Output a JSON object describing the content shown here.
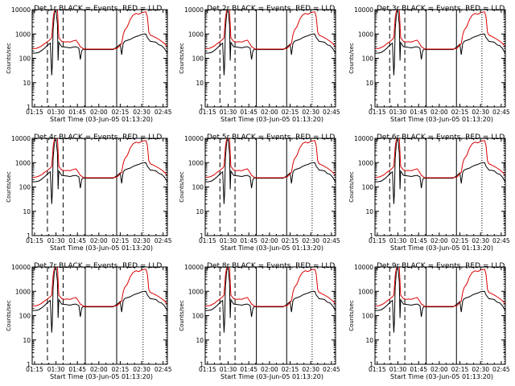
{
  "figure": {
    "xlabel": "Start Time (03-Jun-05 01:13:20)",
    "ylabel": "Counts/sec"
  },
  "chart_data": [
    {
      "type": "line",
      "title": "Det 1r BLACK = Events, RED = LLD",
      "panel": 0
    },
    {
      "type": "line",
      "title": "Det 2r BLACK = Events, RED = LLD",
      "panel": 1
    },
    {
      "type": "line",
      "title": "Det 3r BLACK = Events, RED = LLD",
      "panel": 2
    },
    {
      "type": "line",
      "title": "Det 4r BLACK = Events, RED = LLD",
      "panel": 3
    },
    {
      "type": "line",
      "title": "Det 5r BLACK = Events, RED = LLD",
      "panel": 4
    },
    {
      "type": "line",
      "title": "Det 6r BLACK = Events, RED = LLD",
      "panel": 5
    },
    {
      "type": "line",
      "title": "Det 7r BLACK = Events, RED = LLD",
      "panel": 6
    },
    {
      "type": "line",
      "title": "Det 8r BLACK = Events, RED = LLD",
      "panel": 7
    },
    {
      "type": "line",
      "title": "Det 9r BLACK = Events, RED = LLD",
      "panel": 8
    }
  ],
  "shared": {
    "xscale": "linear",
    "yscale": "log",
    "xlim_min": [
      73.33,
      168
    ],
    "ylim": [
      1,
      10000
    ],
    "xticks_min": [
      75,
      90,
      105,
      120,
      135,
      150,
      165
    ],
    "xtick_labels": [
      "01:15",
      "01:30",
      "01:45",
      "02:00",
      "02:15",
      "02:30",
      "02:45"
    ],
    "yticks": [
      1,
      10,
      100,
      1000,
      10000
    ],
    "ytick_labels": [
      "1",
      "10",
      "100",
      "1000",
      "10000"
    ],
    "grid": false,
    "colors": {
      "events": "#000000",
      "lld": "#dd0000",
      "axes": "#000000"
    },
    "series": [
      {
        "name": "Events",
        "x": [
          73.3,
          76,
          78,
          80,
          82,
          84,
          86,
          87,
          87.5,
          88,
          89,
          90,
          91,
          91.5,
          92,
          94,
          96,
          98,
          100,
          102,
          104,
          106,
          107,
          108,
          109,
          110,
          115,
          120,
          125,
          130,
          133,
          135,
          136,
          137,
          138,
          140,
          142,
          144,
          146,
          148,
          150,
          152,
          153,
          154,
          155,
          156,
          158,
          160,
          162,
          164,
          166,
          168
        ],
        "y": [
          160,
          165,
          175,
          210,
          260,
          340,
          420,
          20,
          60,
          1500,
          8000,
          9000,
          2500,
          80,
          450,
          300,
          290,
          280,
          270,
          290,
          300,
          260,
          90,
          200,
          240,
          230,
          230,
          230,
          230,
          230,
          300,
          380,
          140,
          400,
          500,
          550,
          600,
          700,
          780,
          850,
          950,
          1000,
          980,
          700,
          600,
          500,
          480,
          460,
          360,
          330,
          250,
          160
        ]
      },
      {
        "name": "LLD",
        "x": [
          73.3,
          76,
          78,
          80,
          82,
          84,
          86,
          87,
          88,
          89,
          90,
          91,
          92,
          94,
          96,
          98,
          100,
          102,
          104,
          106,
          107,
          108,
          109,
          110,
          115,
          120,
          125,
          130,
          133,
          135,
          136,
          137,
          138,
          140,
          142,
          144,
          146,
          148,
          150,
          152,
          153,
          154,
          155,
          156,
          158,
          160,
          162,
          164,
          166,
          168
        ],
        "y": [
          250,
          255,
          280,
          320,
          400,
          480,
          600,
          700,
          4500,
          10000,
          10000,
          10000,
          700,
          500,
          470,
          480,
          470,
          520,
          560,
          380,
          300,
          280,
          250,
          240,
          240,
          240,
          240,
          240,
          260,
          350,
          400,
          900,
          1400,
          2000,
          4000,
          6000,
          7000,
          6500,
          7500,
          8000,
          8000,
          5000,
          1200,
          900,
          800,
          700,
          600,
          500,
          400,
          300
        ]
      }
    ],
    "vlines": [
      {
        "x": 84,
        "style": "dashed"
      },
      {
        "x": 95,
        "style": "dashed"
      },
      {
        "x": 110.5,
        "style": "solid"
      },
      {
        "x": 132.5,
        "style": "solid"
      },
      {
        "x": 151,
        "style": "dotted"
      },
      {
        "x": 167.3,
        "style": "dotted"
      }
    ]
  }
}
